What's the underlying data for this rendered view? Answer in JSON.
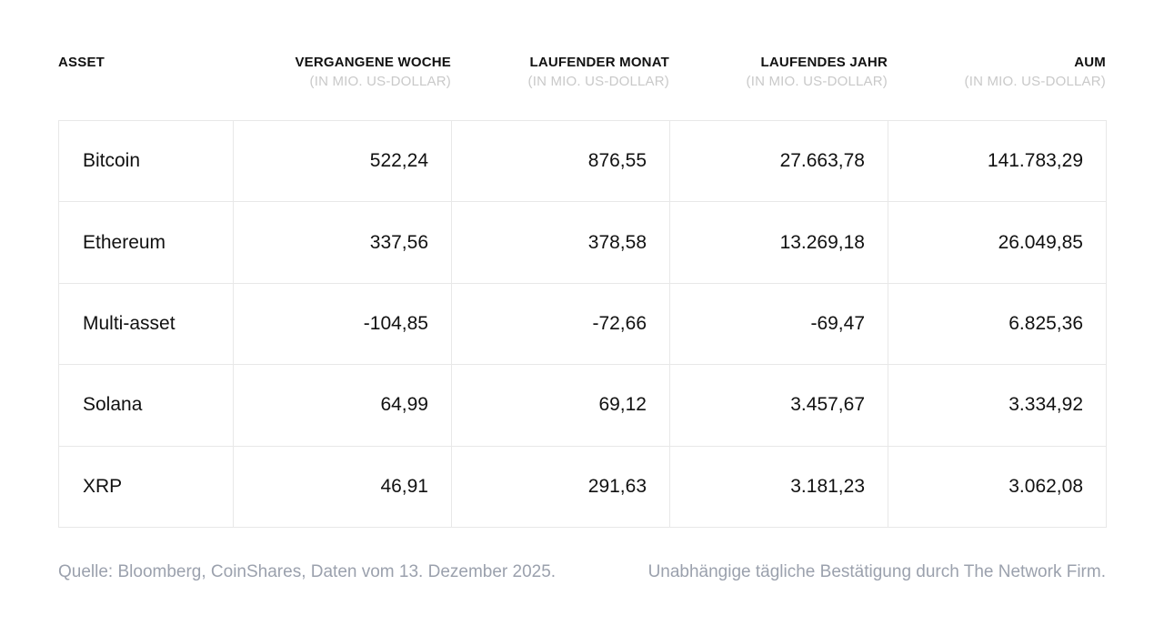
{
  "chart_data": {
    "type": "table",
    "title": "",
    "columns": [
      {
        "label": "ASSET",
        "sub": ""
      },
      {
        "label": "VERGANGENE WOCHE",
        "sub": "(IN MIO. US-DOLLAR)"
      },
      {
        "label": "LAUFENDER MONAT",
        "sub": "(IN MIO. US-DOLLAR)"
      },
      {
        "label": "LAUFENDES JAHR",
        "sub": "(IN MIO. US-DOLLAR)"
      },
      {
        "label": "AUM",
        "sub": "(IN MIO. US-DOLLAR)"
      }
    ],
    "rows": [
      {
        "asset": "Bitcoin",
        "week": "522,24",
        "month": "876,55",
        "ytd": "27.663,78",
        "aum": "141.783,29"
      },
      {
        "asset": "Ethereum",
        "week": "337,56",
        "month": "378,58",
        "ytd": "13.269,18",
        "aum": "26.049,85"
      },
      {
        "asset": "Multi-asset",
        "week": "-104,85",
        "month": "-72,66",
        "ytd": "-69,47",
        "aum": "6.825,36"
      },
      {
        "asset": "Solana",
        "week": "64,99",
        "month": "69,12",
        "ytd": "3.457,67",
        "aum": "3.334,92"
      },
      {
        "asset": "XRP",
        "week": "46,91",
        "month": "291,63",
        "ytd": "3.181,23",
        "aum": "3.062,08"
      }
    ],
    "rows_numeric": [
      {
        "asset": "Bitcoin",
        "week": 522.24,
        "month": 876.55,
        "ytd": 27663.78,
        "aum": 141783.29
      },
      {
        "asset": "Ethereum",
        "week": 337.56,
        "month": 378.58,
        "ytd": 13269.18,
        "aum": 26049.85
      },
      {
        "asset": "Multi-asset",
        "week": -104.85,
        "month": -72.66,
        "ytd": -69.47,
        "aum": 6825.36
      },
      {
        "asset": "Solana",
        "week": 64.99,
        "month": 69.12,
        "ytd": 3457.67,
        "aum": 3334.92
      },
      {
        "asset": "XRP",
        "week": 46.91,
        "month": 291.63,
        "ytd": 3181.23,
        "aum": 3062.08
      }
    ],
    "unit": "Mio. US-Dollar",
    "layout": {
      "grid": true,
      "header_outside_border": true
    }
  },
  "footer": {
    "source": "Quelle: Bloomberg, CoinShares, Daten vom 13. Dezember 2025.",
    "verification": "Unabhängige tägliche Bestätigung durch The Network Firm."
  },
  "colors": {
    "background": "#ffffff",
    "text": "#111111",
    "subheader": "#c9c9c9",
    "footer_text": "#9ba1ad",
    "border": "#e8e8e8"
  }
}
